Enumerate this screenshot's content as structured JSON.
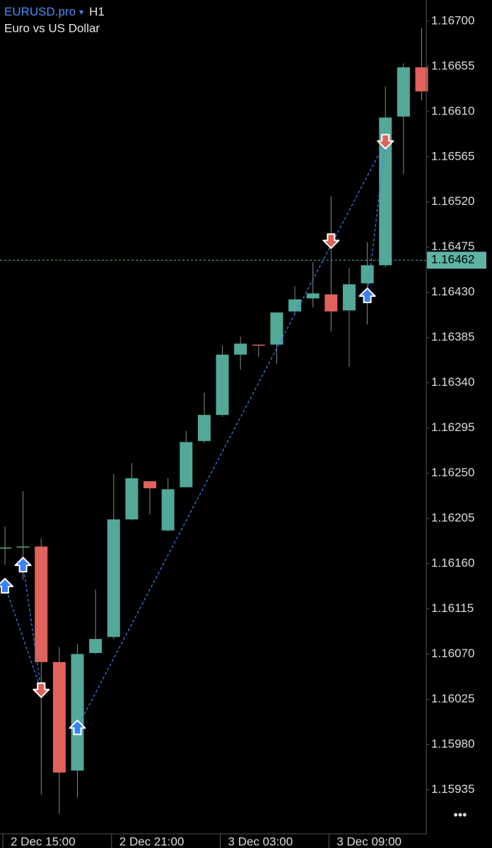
{
  "chart_data": {
    "type": "candlestick",
    "title": "EURUSD.pro",
    "title_marker": "▾",
    "timeframe": "H1",
    "subtitle": "Euro vs US Dollar",
    "categories": [
      "2 Dec 15:00",
      null,
      null,
      null,
      null,
      null,
      "2 Dec 21:00",
      null,
      null,
      null,
      null,
      null,
      "3 Dec 03:00",
      null,
      null,
      null,
      null,
      null,
      "3 Dec 09:00",
      null,
      null,
      null,
      null,
      null
    ],
    "open": [
      1.16176,
      1.16177,
      1.16177,
      1.16062,
      1.15954,
      1.16071,
      1.16087,
      1.16204,
      1.16242,
      1.16193,
      1.16236,
      1.16282,
      1.16308,
      1.16368,
      1.16378,
      1.16378,
      1.16411,
      1.16424,
      1.16428,
      1.16412,
      1.16439,
      1.16457,
      1.16605,
      1.16654
    ],
    "high": [
      1.16197,
      1.16232,
      1.16185,
      1.16077,
      1.1608,
      1.16134,
      1.16249,
      1.1626,
      1.16242,
      1.16245,
      1.16292,
      1.1633,
      1.16377,
      1.16386,
      1.16378,
      1.1641,
      1.16436,
      1.1646,
      1.16526,
      1.16454,
      1.1648,
      1.16635,
      1.16658,
      1.16693
    ],
    "low": [
      1.16159,
      1.16144,
      1.1593,
      1.15911,
      1.15927,
      1.1607,
      1.16085,
      1.16203,
      1.16209,
      1.16192,
      1.16236,
      1.1628,
      1.16306,
      1.16353,
      1.16366,
      1.16359,
      1.16409,
      1.16415,
      1.16391,
      1.16356,
      1.16398,
      1.16455,
      1.16548,
      1.16621
    ],
    "close": [
      1.16176,
      1.16177,
      1.16062,
      1.15952,
      1.1607,
      1.16085,
      1.16204,
      1.16245,
      1.16235,
      1.16234,
      1.16281,
      1.16308,
      1.16368,
      1.16379,
      1.16377,
      1.1641,
      1.16423,
      1.16429,
      1.16411,
      1.16438,
      1.16457,
      1.16604,
      1.16654,
      1.1663
    ],
    "up_color": "#52a899",
    "down_color": "#e0625a",
    "deals": [
      {
        "buy": [
          0,
          1.16138
        ],
        "sell": [
          2,
          1.16034
        ]
      },
      {
        "buy": [
          1,
          1.16159
        ],
        "sell": [
          2,
          1.16034
        ]
      },
      {
        "buy": [
          4,
          1.15997
        ],
        "sell": [
          21,
          1.1658
        ]
      },
      {
        "buy": [
          20,
          1.16427
        ],
        "sell": [
          21,
          1.1658
        ]
      },
      {
        "buy": null,
        "sell": [
          18,
          1.16481
        ]
      }
    ],
    "buy_color": "#3b82f6",
    "sell_color": "#e0625a",
    "last_price": 1.16462,
    "ylim": [
      1.15891,
      1.16721
    ],
    "yticks": [
      {
        "value": 1.167,
        "label": "1.16700"
      },
      1.16655,
      {
        "value": 1.1661,
        "label": "1.16610"
      },
      1.16565,
      {
        "value": 1.1652,
        "label": "1.16520"
      },
      1.16475,
      {
        "value": 1.1643,
        "label": "1.16430"
      },
      1.16385,
      {
        "value": 1.1634,
        "label": "1.16340"
      },
      1.16295,
      {
        "value": 1.1625,
        "label": "1.16250"
      },
      1.16205,
      {
        "value": 1.1616,
        "label": "1.16160"
      },
      1.16115,
      {
        "value": 1.1607,
        "label": "1.16070"
      },
      1.16025,
      {
        "value": 1.1598,
        "label": "1.15980"
      },
      1.15935
    ],
    "grid": false,
    "menu": "•••"
  }
}
